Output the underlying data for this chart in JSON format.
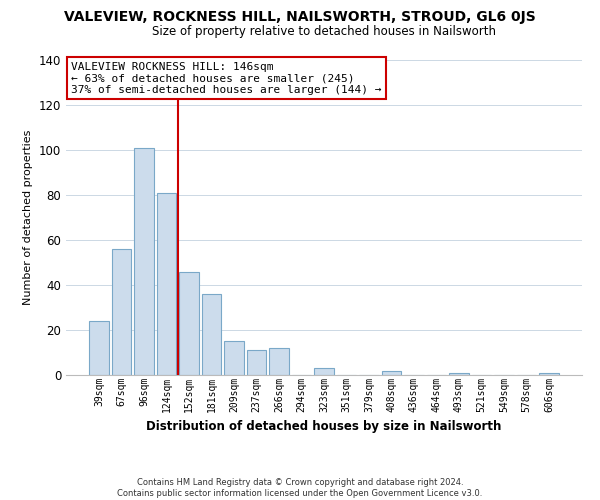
{
  "title": "VALEVIEW, ROCKNESS HILL, NAILSWORTH, STROUD, GL6 0JS",
  "subtitle": "Size of property relative to detached houses in Nailsworth",
  "xlabel": "Distribution of detached houses by size in Nailsworth",
  "ylabel": "Number of detached properties",
  "bar_labels": [
    "39sqm",
    "67sqm",
    "96sqm",
    "124sqm",
    "152sqm",
    "181sqm",
    "209sqm",
    "237sqm",
    "266sqm",
    "294sqm",
    "323sqm",
    "351sqm",
    "379sqm",
    "408sqm",
    "436sqm",
    "464sqm",
    "493sqm",
    "521sqm",
    "549sqm",
    "578sqm",
    "606sqm"
  ],
  "bar_values": [
    24,
    56,
    101,
    81,
    46,
    36,
    15,
    11,
    12,
    0,
    3,
    0,
    0,
    2,
    0,
    0,
    1,
    0,
    0,
    0,
    1
  ],
  "bar_color": "#ccdcec",
  "bar_edge_color": "#7aa8c8",
  "vline_color": "#cc0000",
  "vline_pos": 3.5,
  "annotation_title": "VALEVIEW ROCKNESS HILL: 146sqm",
  "annotation_line1": "← 63% of detached houses are smaller (245)",
  "annotation_line2": "37% of semi-detached houses are larger (144) →",
  "annotation_box_edge": "#cc0000",
  "ylim": [
    0,
    140
  ],
  "yticks": [
    0,
    20,
    40,
    60,
    80,
    100,
    120,
    140
  ],
  "footer_line1": "Contains HM Land Registry data © Crown copyright and database right 2024.",
  "footer_line2": "Contains public sector information licensed under the Open Government Licence v3.0."
}
